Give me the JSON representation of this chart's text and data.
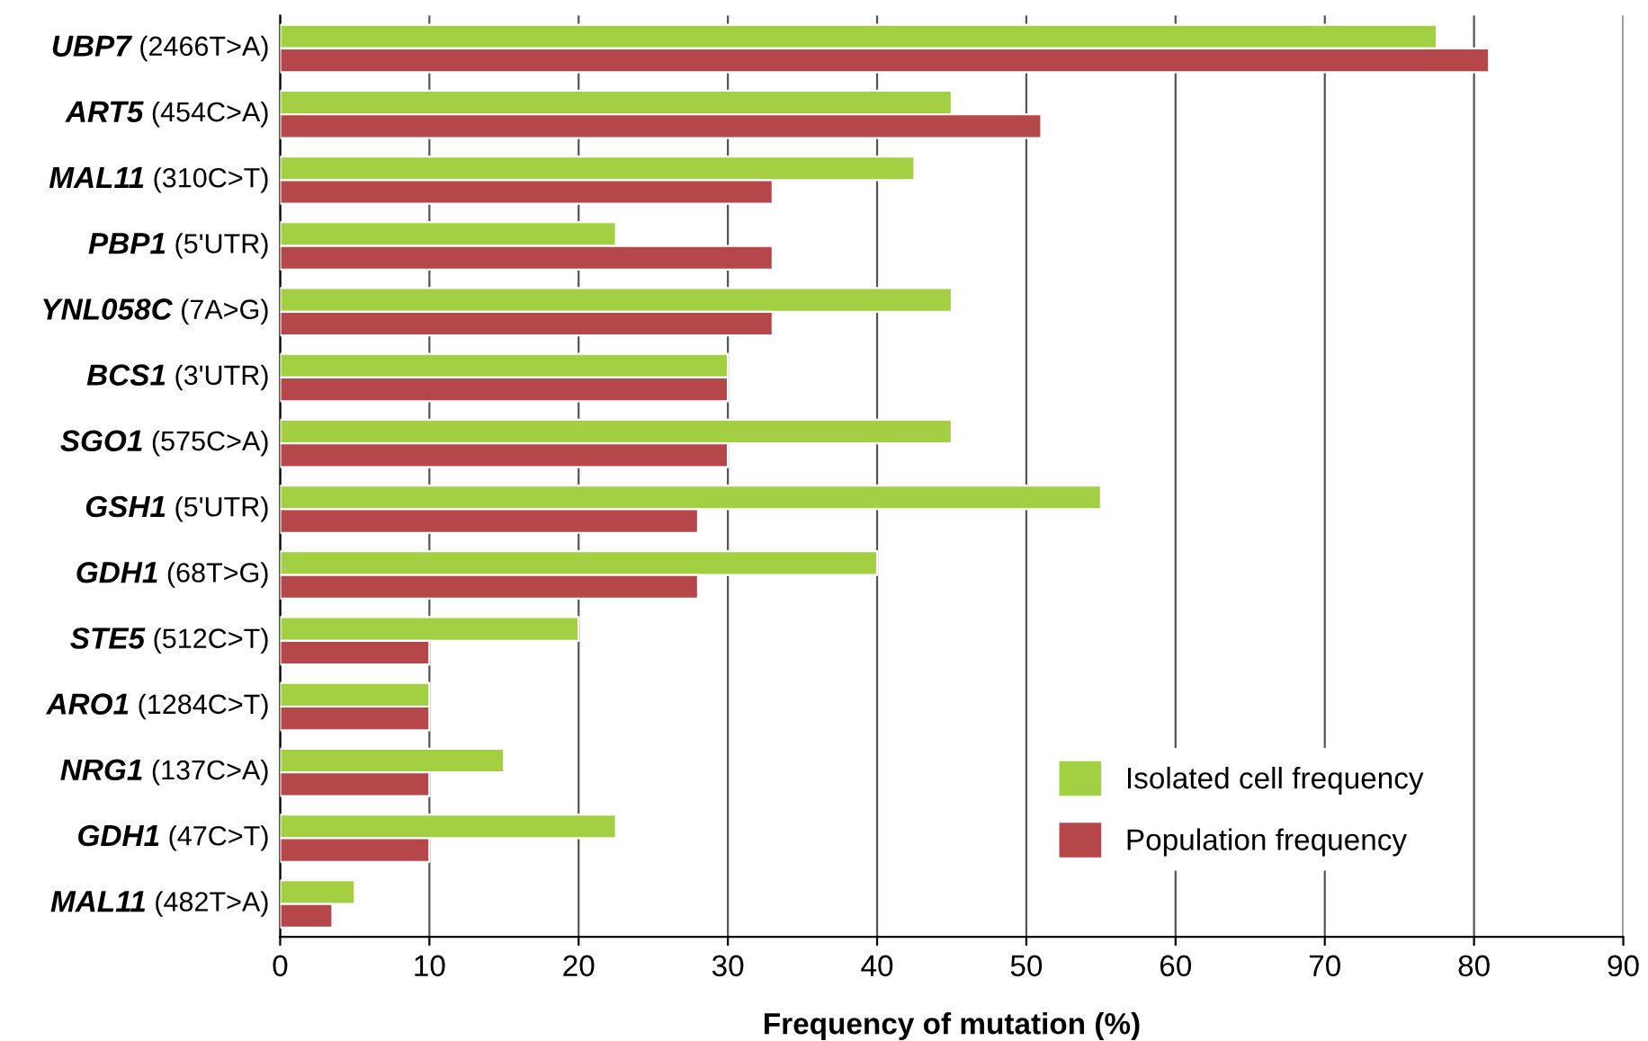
{
  "chart_data": {
    "type": "bar",
    "orientation": "horizontal",
    "xlabel": "Frequency of mutation (%)",
    "categories": [
      "UBP7 (2466T>A)",
      "ART5 (454C>A)",
      "MAL11 (310C>T)",
      "PBP1 (5'UTR)",
      "YNL058C (7A>G)",
      "BCS1 (3'UTR)",
      "SGO1 (575C>A)",
      "GSH1 (5'UTR)",
      "GDH1 (68T>G)",
      "STE5 (512C>T)",
      "ARO1 (1284C>T)",
      "NRG1 (137C>A)",
      "GDH1 (47C>T)",
      "MAL11 (482T>A)"
    ],
    "series": [
      {
        "name": "Isolated cell frequency",
        "color": "#a3d043",
        "values": [
          77.5,
          45,
          42.5,
          22.5,
          45,
          30,
          45,
          55,
          40,
          20,
          10,
          15,
          22.5,
          5
        ]
      },
      {
        "name": "Population frequency",
        "color": "#b5464a",
        "values": [
          81,
          51,
          33,
          33,
          33,
          30,
          30,
          28,
          28,
          10,
          10,
          10,
          10,
          3.5
        ]
      }
    ],
    "xlim": [
      0,
      90
    ],
    "xticks": [
      0,
      10,
      20,
      30,
      40,
      50,
      60,
      70,
      80,
      90
    ],
    "grid": "x",
    "legend": "bottom right"
  }
}
